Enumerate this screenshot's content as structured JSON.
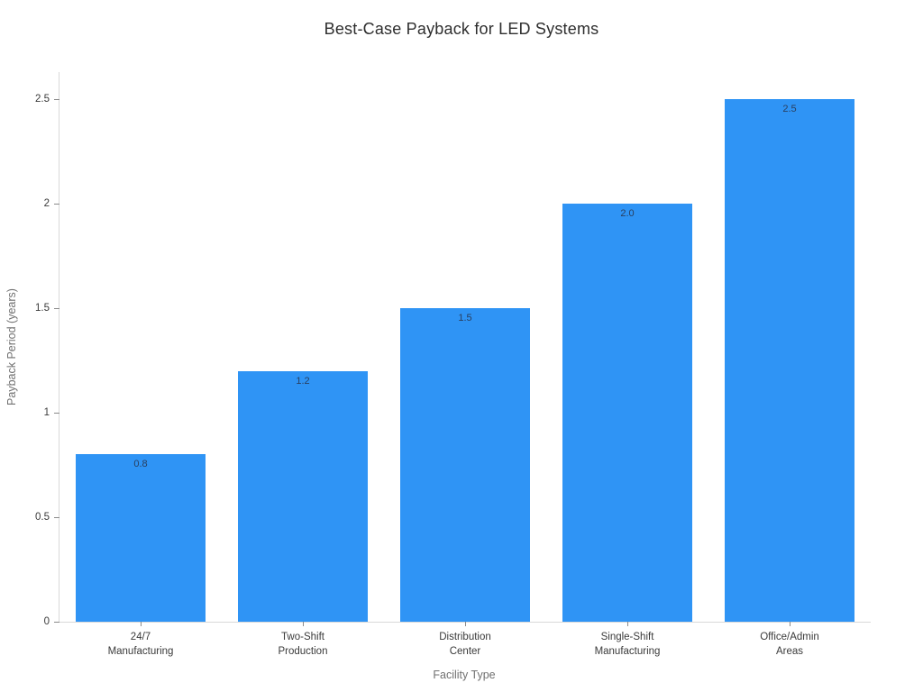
{
  "chart_data": {
    "type": "bar",
    "title": "Best-Case Payback for LED Systems",
    "xlabel": "Facility Type",
    "ylabel": "Payback Period (years)",
    "categories": [
      "24/7\nManufacturing",
      "Two-Shift\nProduction",
      "Distribution\nCenter",
      "Single-Shift\nManufacturing",
      "Office/Admin\nAreas"
    ],
    "values": [
      0.8,
      1.2,
      1.5,
      2.0,
      2.5
    ],
    "bar_value_labels": [
      "0.8",
      "1.2",
      "1.5",
      "2.0",
      "2.5"
    ],
    "y_ticks": [
      {
        "value": 0,
        "label": "0"
      },
      {
        "value": 0.5,
        "label": "0.5"
      },
      {
        "value": 1,
        "label": "1"
      },
      {
        "value": 1.5,
        "label": "1.5"
      },
      {
        "value": 2,
        "label": "2"
      },
      {
        "value": 2.5,
        "label": "2.5"
      }
    ],
    "ylim": [
      0,
      2.63
    ],
    "grid": false,
    "legend": "none",
    "bar_width_fraction": 0.8,
    "colors": {
      "bar": "#2f94f5",
      "bar_value_label": "#2a3f5f",
      "axis_line": "#d9d9d9",
      "tick_mark": "#8a8a8a",
      "tick_label": "#3a3a3a",
      "axis_title": "#707070",
      "title": "#2e2e2e",
      "background": "#ffffff"
    }
  }
}
